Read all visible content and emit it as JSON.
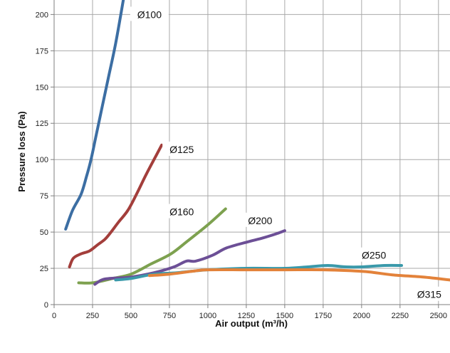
{
  "chart_data": {
    "type": "line",
    "xlabel": "Air output (m³/h)",
    "ylabel": "Pressure loss (Pa)",
    "xlim": [
      0,
      2575
    ],
    "ylim": [
      0,
      210
    ],
    "x_ticks": [
      0,
      250,
      500,
      750,
      1000,
      1250,
      1500,
      1750,
      2000,
      2250,
      2500
    ],
    "x_tick_labels": [
      "0",
      "250",
      "500",
      "750",
      "1000",
      "1250",
      "1500",
      "1750",
      "2000",
      "2250",
      "2500"
    ],
    "y_ticks": [
      0,
      25,
      50,
      75,
      100,
      125,
      150,
      175,
      200
    ],
    "y_tick_labels": [
      "0",
      "25",
      "50",
      "75",
      "100",
      "125",
      "150",
      "175",
      "200"
    ],
    "grid": true,
    "legend": "labels next to curves",
    "series": [
      {
        "name": "Ø100",
        "color": "#3c6ea3",
        "x": [
          75,
          120,
          175,
          210,
          240,
          270,
          310,
          350,
          400,
          450
        ],
        "y": [
          52,
          65,
          76,
          88,
          100,
          115,
          135,
          155,
          180,
          210
        ]
      },
      {
        "name": "Ø125",
        "color": "#a33e3b",
        "x": [
          100,
          125,
          175,
          230,
          280,
          330,
          370,
          420,
          480,
          540,
          600,
          660,
          700
        ],
        "y": [
          26,
          32,
          35,
          37,
          41,
          45,
          50,
          57,
          65,
          77,
          90,
          102,
          110
        ]
      },
      {
        "name": "Ø160",
        "color": "#7da14f",
        "x": [
          160,
          250,
          380,
          500,
          630,
          760,
          870,
          1000,
          1115
        ],
        "y": [
          15,
          15,
          18,
          21,
          28,
          35,
          44,
          55,
          66
        ]
      },
      {
        "name": "Ø200",
        "color": "#6c4f96",
        "x": [
          265,
          310,
          360,
          500,
          650,
          780,
          860,
          920,
          1030,
          1120,
          1250,
          1360,
          1450,
          1500
        ],
        "y": [
          14,
          17,
          18,
          19,
          22,
          26,
          30,
          30,
          34,
          39,
          43,
          46,
          49,
          51
        ]
      },
      {
        "name": "Ø250",
        "color": "#3a99aa",
        "x": [
          400,
          500,
          650,
          800,
          1000,
          1250,
          1500,
          1650,
          1780,
          1900,
          2000,
          2150,
          2260
        ],
        "y": [
          17,
          18,
          21,
          22,
          24,
          25,
          25,
          26,
          27,
          26,
          26,
          27,
          27
        ]
      },
      {
        "name": "Ø315",
        "color": "#e3823a",
        "x": [
          620,
          750,
          900,
          1000,
          1250,
          1500,
          1750,
          1900,
          2050,
          2200,
          2400,
          2575
        ],
        "y": [
          20,
          21,
          23,
          24,
          24,
          24,
          24,
          23.5,
          22.5,
          20.5,
          19,
          17
        ]
      }
    ]
  }
}
